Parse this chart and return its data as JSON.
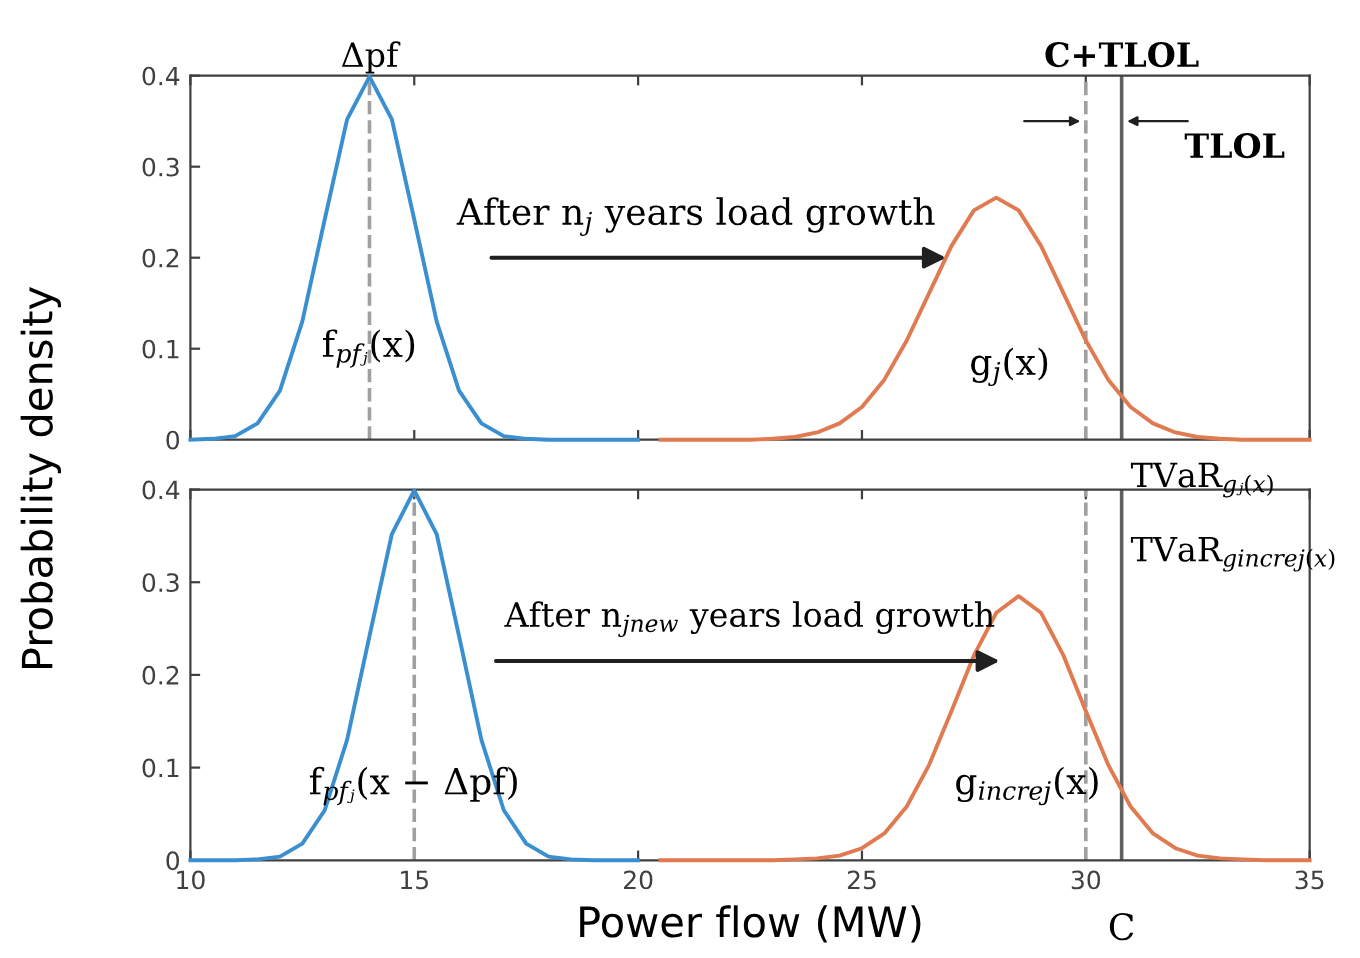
{
  "chart_data": [
    {
      "type": "line",
      "ylabel": "Probability density",
      "xlim": [
        10,
        35
      ],
      "ylim": [
        0,
        0.4
      ],
      "xticks": [
        10,
        15,
        20,
        25,
        30,
        35
      ],
      "yticks": [
        0,
        0.1,
        0.2,
        0.3,
        0.4
      ],
      "tick_labels": "y",
      "grid": false,
      "marker": "none",
      "line_style": "solid",
      "series": [
        {
          "color": "#3a8fd0",
          "x": [
            10,
            10.5,
            11,
            11.5,
            12,
            12.5,
            13,
            13.5,
            14,
            14.5,
            15,
            15.5,
            16,
            16.5,
            17,
            17.5,
            18,
            18.5,
            19,
            19.5,
            20
          ],
          "values": [
            0,
            0.001,
            0.004,
            0.018,
            0.054,
            0.13,
            0.242,
            0.352,
            0.399,
            0.352,
            0.242,
            0.13,
            0.054,
            0.018,
            0.004,
            0.001,
            0,
            0,
            0,
            0,
            0
          ]
        },
        {
          "color": "#e07a50",
          "x": [
            20.5,
            21,
            21.5,
            22,
            22.5,
            23,
            23.5,
            24,
            24.5,
            25,
            25.5,
            26,
            26.5,
            27,
            27.5,
            28,
            28.5,
            29,
            29.5,
            30,
            30.5,
            31,
            31.5,
            32,
            32.5,
            33,
            33.5,
            34,
            34.5,
            35
          ],
          "values": [
            0,
            0,
            0,
            0,
            0,
            0.001,
            0.003,
            0.008,
            0.018,
            0.036,
            0.066,
            0.109,
            0.161,
            0.213,
            0.252,
            0.266,
            0.252,
            0.213,
            0.161,
            0.109,
            0.066,
            0.036,
            0.018,
            0.008,
            0.003,
            0.001,
            0,
            0,
            0,
            0
          ]
        }
      ],
      "ref_lines": [
        {
          "axis": "x",
          "value": 14,
          "color": "#a0a0a0",
          "line_style": "dashed"
        },
        {
          "axis": "x",
          "value": 30,
          "color": "#a0a0a0",
          "line_style": "dashed"
        },
        {
          "axis": "x",
          "value": 30.8,
          "color": "#606060",
          "line_style": "solid"
        }
      ],
      "annotations": [
        "Δpf",
        "C+TLOL",
        "TLOL",
        "After n$_{j}$ years load growth",
        "f$_{pfⱼ}$(x)",
        "g$_{j}$(x)"
      ]
    },
    {
      "type": "line",
      "xlabel": "Power flow (MW)",
      "xlim": [
        10,
        35
      ],
      "ylim": [
        0,
        0.4
      ],
      "xticks": [
        10,
        15,
        20,
        25,
        30,
        35
      ],
      "yticks": [
        0,
        0.1,
        0.2,
        0.3,
        0.4
      ],
      "grid": false,
      "marker": "none",
      "line_style": "solid",
      "series": [
        {
          "color": "#3a8fd0",
          "x": [
            10,
            10.5,
            11,
            11.5,
            12,
            12.5,
            13,
            13.5,
            14,
            14.5,
            15,
            15.5,
            16,
            16.5,
            17,
            17.5,
            18,
            18.5,
            19,
            19.5,
            20
          ],
          "values": [
            0,
            0,
            0,
            0.001,
            0.004,
            0.018,
            0.054,
            0.13,
            0.242,
            0.352,
            0.399,
            0.352,
            0.242,
            0.13,
            0.054,
            0.018,
            0.004,
            0.001,
            0,
            0,
            0
          ]
        },
        {
          "color": "#e07a50",
          "x": [
            20.5,
            21,
            21.5,
            22,
            22.5,
            23,
            23.5,
            24,
            24.5,
            25,
            25.5,
            26,
            26.5,
            27,
            27.5,
            28,
            28.5,
            29,
            29.5,
            30,
            30.5,
            31,
            31.5,
            32,
            32.5,
            33,
            33.5,
            34,
            34.5,
            35
          ],
          "values": [
            0,
            0,
            0,
            0,
            0,
            0,
            0.001,
            0.002,
            0.005,
            0.013,
            0.029,
            0.058,
            0.103,
            0.161,
            0.221,
            0.267,
            0.285,
            0.267,
            0.221,
            0.161,
            0.103,
            0.058,
            0.029,
            0.013,
            0.005,
            0.002,
            0.001,
            0,
            0,
            0
          ]
        }
      ],
      "ref_lines": [
        {
          "axis": "x",
          "value": 15,
          "color": "#a0a0a0",
          "line_style": "dashed"
        },
        {
          "axis": "x",
          "value": 30,
          "color": "#a0a0a0",
          "line_style": "dashed"
        },
        {
          "axis": "x",
          "value": 30.8,
          "color": "#606060",
          "line_style": "solid"
        }
      ],
      "annotations": [
        "TVaR$_{gⱼ(x)}$",
        "TVaR$_{gincrej(x)}$",
        "After n$_{jnew}$ years load growth",
        "f$_{pfⱼ}$(x − Δpf)",
        "g$_{increj}$(x)",
        "C"
      ]
    }
  ]
}
